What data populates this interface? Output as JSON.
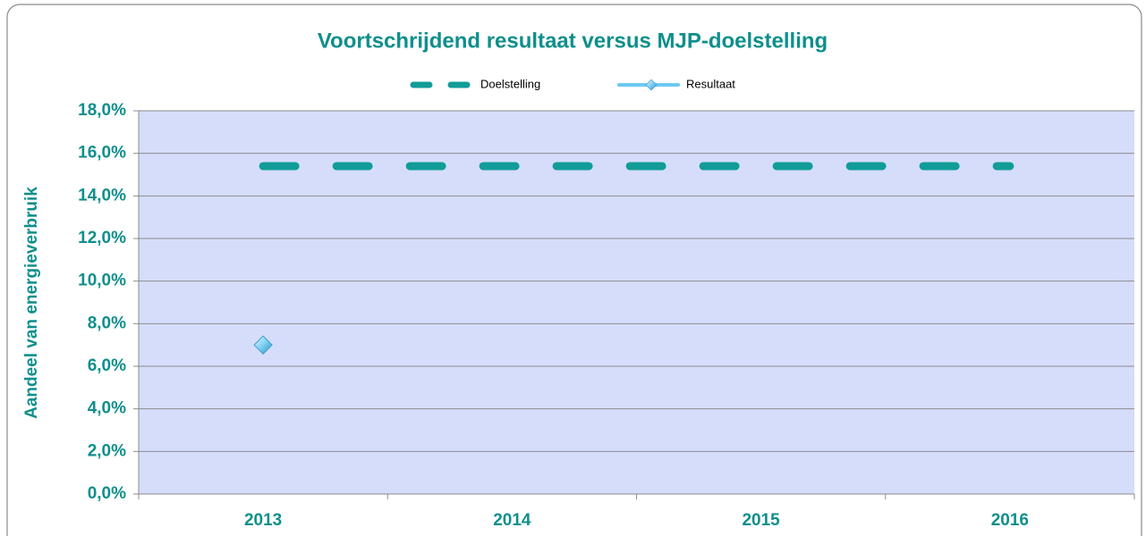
{
  "chart_data": {
    "type": "line",
    "title": "Voortschrijdend resultaat versus MJP-doelstelling",
    "y_label": "Aandeel van energieverbruik",
    "categories": [
      "2013",
      "2014",
      "2015",
      "2016"
    ],
    "series": [
      {
        "name": "Doelstelling",
        "color": "#119c98",
        "dash": true,
        "values": [
          15.4,
          15.4,
          15.4,
          15.4
        ]
      },
      {
        "name": "Resultaat",
        "color": "#6cc8f0",
        "marker": "diamond",
        "values": [
          7.0,
          null,
          null,
          null
        ]
      }
    ],
    "ylim": [
      0,
      18
    ],
    "yticks": [
      {
        "value": 0,
        "label": "0,0%"
      },
      {
        "value": 2,
        "label": "2,0%"
      },
      {
        "value": 4,
        "label": "4,0%"
      },
      {
        "value": 6,
        "label": "6,0%"
      },
      {
        "value": 8,
        "label": "8,0%"
      },
      {
        "value": 10,
        "label": "10,0%"
      },
      {
        "value": 12,
        "label": "12,0%"
      },
      {
        "value": 14,
        "label": "14,0%"
      },
      {
        "value": 16,
        "label": "16,0%"
      },
      {
        "value": 18,
        "label": "18,0%"
      }
    ],
    "grid": true,
    "legend": "top"
  }
}
